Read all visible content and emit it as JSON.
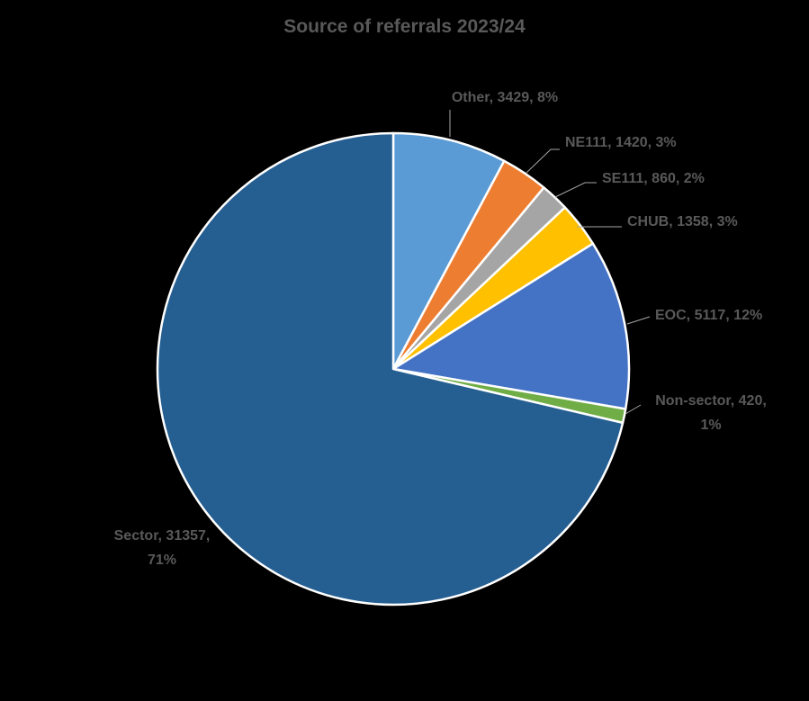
{
  "chart_data": {
    "type": "pie",
    "title": "Source of referrals 2023/24",
    "slices": [
      {
        "name": "Other",
        "value": 3429,
        "percent": "8%",
        "label_lines": [
          "Other, 3429, 8%"
        ],
        "color": "#5B9BD5"
      },
      {
        "name": "NE111",
        "value": 1420,
        "percent": "3%",
        "label_lines": [
          "NE111, 1420, 3%"
        ],
        "color": "#ED7D31"
      },
      {
        "name": "SE111",
        "value": 860,
        "percent": "2%",
        "label_lines": [
          "SE111, 860, 2%"
        ],
        "color": "#A5A5A5"
      },
      {
        "name": "CHUB",
        "value": 1358,
        "percent": "3%",
        "label_lines": [
          "CHUB, 1358, 3%"
        ],
        "color": "#FFC000"
      },
      {
        "name": "EOC",
        "value": 5117,
        "percent": "12%",
        "label_lines": [
          "EOC, 5117, 12%"
        ],
        "color": "#4472C4"
      },
      {
        "name": "Non-sector",
        "value": 420,
        "percent": "1%",
        "label_lines": [
          "Non-sector, 420,",
          "1%"
        ],
        "color": "#70AD47"
      },
      {
        "name": "Sector",
        "value": 31357,
        "percent": "71%",
        "label_lines": [
          "Sector, 31357,",
          "71%"
        ],
        "color": "#255E91"
      }
    ],
    "start_angle": "12 o'clock",
    "direction": "clockwise",
    "legend": "none",
    "background": "#000000",
    "slice_border_color": "#FFFFFF",
    "label_color": "#595959"
  }
}
